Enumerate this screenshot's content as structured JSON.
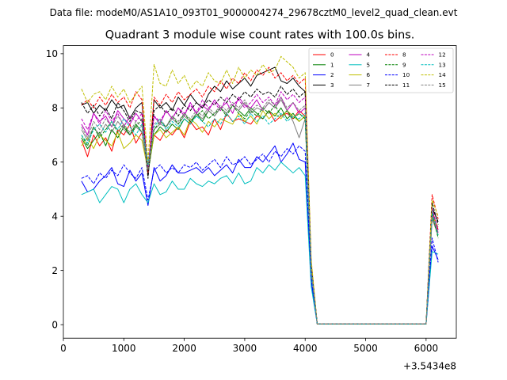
{
  "chart_data": {
    "type": "line",
    "suptitle": "Data file: modeM0/AS1A10_093T01_9000004274_29678cztM0_level2_quad_clean.evt",
    "title": "Quadrant 3 module wise count rates with 100.0s bins.",
    "xlabel": "",
    "ylabel": "",
    "x_offset_label": "+3.5434e8",
    "xlim": [
      0,
      6500
    ],
    "ylim": [
      -0.5,
      10.3
    ],
    "xticks": [
      0,
      1000,
      2000,
      3000,
      4000,
      5000,
      6000
    ],
    "xtick_labels": [
      "0",
      "1000",
      "2000",
      "3000",
      "4000",
      "5000",
      "6000"
    ],
    "yticks": [
      0,
      2,
      4,
      6,
      8,
      10
    ],
    "ytick_labels": [
      "0",
      "2",
      "4",
      "6",
      "8",
      "10"
    ],
    "x": [
      300,
      400,
      500,
      600,
      700,
      800,
      900,
      1000,
      1100,
      1200,
      1300,
      1400,
      1500,
      1600,
      1700,
      1800,
      1900,
      2000,
      2100,
      2200,
      2300,
      2400,
      2500,
      2600,
      2700,
      2800,
      2900,
      3000,
      3100,
      3200,
      3300,
      3400,
      3500,
      3600,
      3700,
      3800,
      3900,
      4000,
      4100,
      4200,
      4300,
      4400,
      4500,
      4600,
      4700,
      4800,
      4900,
      5000,
      5100,
      5200,
      5300,
      5400,
      5500,
      5600,
      5700,
      5800,
      5900,
      6000,
      6100,
      6200
    ],
    "series": [
      {
        "name": "0",
        "color": "#ff0000",
        "style": "solid",
        "values": [
          6.8,
          6.2,
          7.0,
          6.6,
          6.9,
          6.4,
          7.2,
          7.0,
          7.4,
          6.7,
          7.1,
          5.8,
          7.0,
          6.8,
          7.2,
          7.0,
          7.3,
          6.9,
          7.5,
          7.2,
          7.3,
          7.0,
          7.6,
          7.2,
          7.8,
          7.5,
          7.6,
          7.5,
          7.4,
          7.7,
          7.6,
          7.9,
          7.5,
          7.7,
          7.8,
          7.6,
          7.9,
          7.7,
          2.0,
          0.02,
          0.02,
          0.02,
          0.02,
          0.02,
          0.02,
          0.02,
          0.02,
          0.02,
          0.02,
          0.02,
          0.02,
          0.02,
          0.02,
          0.02,
          0.02,
          0.02,
          0.02,
          0.02,
          4.2,
          3.5
        ]
      },
      {
        "name": "1",
        "color": "#008000",
        "style": "solid",
        "values": [
          6.9,
          6.5,
          6.8,
          7.1,
          6.6,
          7.2,
          6.9,
          7.3,
          7.0,
          7.4,
          7.1,
          5.6,
          7.0,
          7.3,
          7.1,
          7.4,
          7.2,
          7.6,
          7.4,
          7.8,
          7.5,
          7.9,
          7.7,
          8.0,
          7.8,
          8.1,
          7.9,
          7.7,
          8.0,
          7.8,
          7.6,
          7.9,
          7.7,
          8.0,
          7.6,
          7.8,
          7.5,
          7.7,
          2.0,
          0.02,
          0.02,
          0.02,
          0.02,
          0.02,
          0.02,
          0.02,
          0.02,
          0.02,
          0.02,
          0.02,
          0.02,
          0.02,
          0.02,
          0.02,
          0.02,
          0.02,
          0.02,
          0.02,
          4.0,
          3.3
        ]
      },
      {
        "name": "2",
        "color": "#0000ff",
        "style": "solid",
        "values": [
          5.3,
          4.9,
          5.0,
          5.3,
          5.5,
          5.8,
          5.2,
          5.1,
          5.7,
          5.3,
          5.6,
          4.4,
          5.8,
          5.3,
          5.5,
          5.9,
          5.6,
          5.6,
          5.7,
          5.8,
          5.6,
          5.8,
          5.5,
          5.7,
          5.9,
          5.6,
          6.1,
          5.8,
          5.8,
          6.2,
          6.0,
          6.3,
          6.6,
          6.0,
          6.3,
          6.7,
          6.1,
          6.0,
          1.6,
          0.02,
          0.02,
          0.02,
          0.02,
          0.02,
          0.02,
          0.02,
          0.02,
          0.02,
          0.02,
          0.02,
          0.02,
          0.02,
          0.02,
          0.02,
          0.02,
          0.02,
          0.02,
          0.02,
          2.9,
          2.4
        ]
      },
      {
        "name": "3",
        "color": "#000000",
        "style": "solid",
        "values": [
          8.1,
          8.2,
          7.8,
          8.1,
          7.9,
          8.3,
          8.0,
          8.1,
          7.6,
          8.0,
          8.2,
          5.5,
          8.3,
          8.0,
          8.2,
          7.9,
          8.4,
          8.1,
          8.5,
          8.2,
          8.0,
          8.5,
          8.8,
          8.6,
          9.0,
          8.7,
          8.9,
          9.1,
          8.8,
          9.2,
          9.3,
          9.4,
          9.5,
          9.0,
          8.9,
          9.1,
          8.8,
          8.6,
          2.2,
          0.02,
          0.02,
          0.02,
          0.02,
          0.02,
          0.02,
          0.02,
          0.02,
          0.02,
          0.02,
          0.02,
          0.02,
          0.02,
          0.02,
          0.02,
          0.02,
          0.02,
          0.02,
          0.02,
          4.3,
          3.8
        ]
      },
      {
        "name": "4",
        "color": "#bf00bf",
        "style": "solid",
        "values": [
          7.4,
          7.0,
          7.8,
          7.5,
          7.7,
          7.3,
          7.9,
          7.6,
          7.4,
          7.8,
          7.5,
          5.9,
          7.7,
          7.4,
          7.9,
          7.6,
          8.0,
          7.7,
          8.2,
          7.8,
          8.1,
          7.9,
          8.3,
          8.0,
          8.2,
          7.8,
          8.4,
          8.1,
          8.0,
          8.3,
          7.9,
          8.2,
          8.0,
          8.4,
          7.9,
          8.2,
          7.8,
          8.0,
          2.1,
          0.02,
          0.02,
          0.02,
          0.02,
          0.02,
          0.02,
          0.02,
          0.02,
          0.02,
          0.02,
          0.02,
          0.02,
          0.02,
          0.02,
          0.02,
          0.02,
          0.02,
          0.02,
          0.02,
          4.1,
          3.4
        ]
      },
      {
        "name": "5",
        "color": "#00bfbf",
        "style": "solid",
        "values": [
          4.8,
          4.9,
          5.0,
          4.5,
          4.8,
          5.1,
          5.0,
          4.5,
          5.0,
          5.2,
          4.8,
          4.5,
          5.2,
          4.8,
          4.9,
          5.3,
          5.0,
          5.0,
          5.4,
          5.2,
          5.1,
          5.3,
          5.2,
          5.4,
          5.5,
          5.2,
          5.6,
          5.2,
          5.3,
          5.8,
          5.6,
          5.9,
          5.7,
          6.0,
          5.8,
          5.6,
          5.8,
          5.5,
          1.4,
          0.02,
          0.02,
          0.02,
          0.02,
          0.02,
          0.02,
          0.02,
          0.02,
          0.02,
          0.02,
          0.02,
          0.02,
          0.02,
          0.02,
          0.02,
          0.02,
          0.02,
          0.02,
          0.02,
          2.7,
          2.6
        ]
      },
      {
        "name": "6",
        "color": "#bfbf00",
        "style": "solid",
        "values": [
          6.6,
          6.9,
          6.5,
          7.0,
          6.8,
          6.6,
          7.1,
          6.5,
          6.7,
          7.0,
          6.8,
          5.7,
          7.0,
          7.2,
          6.9,
          7.1,
          7.3,
          7.0,
          7.6,
          7.4,
          7.1,
          7.5,
          7.3,
          7.6,
          7.5,
          7.4,
          7.8,
          7.5,
          7.7,
          7.4,
          7.9,
          7.6,
          7.8,
          7.6,
          7.9,
          7.7,
          7.5,
          7.7,
          2.0,
          0.02,
          0.02,
          0.02,
          0.02,
          0.02,
          0.02,
          0.02,
          0.02,
          0.02,
          0.02,
          0.02,
          0.02,
          0.02,
          0.02,
          0.02,
          0.02,
          0.02,
          0.02,
          0.02,
          4.0,
          3.6
        ]
      },
      {
        "name": "7",
        "color": "#808080",
        "style": "solid",
        "values": [
          7.2,
          6.8,
          7.3,
          7.0,
          7.4,
          7.1,
          7.5,
          7.2,
          7.0,
          7.3,
          7.1,
          5.7,
          7.2,
          7.4,
          7.3,
          7.6,
          7.4,
          7.7,
          7.5,
          7.8,
          7.6,
          7.9,
          7.7,
          8.0,
          7.8,
          8.1,
          7.9,
          8.2,
          7.8,
          8.0,
          7.9,
          8.2,
          8.0,
          8.3,
          7.9,
          7.5,
          6.9,
          7.6,
          1.9,
          0.02,
          0.02,
          0.02,
          0.02,
          0.02,
          0.02,
          0.02,
          0.02,
          0.02,
          0.02,
          0.02,
          0.02,
          0.02,
          0.02,
          0.02,
          0.02,
          0.02,
          0.02,
          0.02,
          3.9,
          3.3
        ]
      },
      {
        "name": "8",
        "color": "#ff0000",
        "style": "dashed",
        "values": [
          8.1,
          8.3,
          8.0,
          8.4,
          8.1,
          8.5,
          8.2,
          8.4,
          8.0,
          8.6,
          8.3,
          5.6,
          8.4,
          8.1,
          8.5,
          8.2,
          8.6,
          8.3,
          8.5,
          8.7,
          8.4,
          8.8,
          8.6,
          9.0,
          8.7,
          9.1,
          8.9,
          9.3,
          9.0,
          9.4,
          9.2,
          9.5,
          9.1,
          9.3,
          9.0,
          9.2,
          8.9,
          9.1,
          2.3,
          0.02,
          0.02,
          0.02,
          0.02,
          0.02,
          0.02,
          0.02,
          0.02,
          0.02,
          0.02,
          0.02,
          0.02,
          0.02,
          0.02,
          0.02,
          0.02,
          0.02,
          0.02,
          0.02,
          4.8,
          3.9
        ]
      },
      {
        "name": "9",
        "color": "#008000",
        "style": "dashed",
        "values": [
          7.0,
          6.6,
          7.3,
          6.9,
          7.2,
          7.5,
          7.1,
          7.4,
          7.0,
          7.3,
          7.6,
          5.8,
          7.2,
          7.5,
          7.3,
          7.7,
          7.4,
          7.8,
          7.5,
          7.7,
          7.9,
          7.6,
          7.8,
          8.0,
          7.7,
          8.1,
          7.8,
          7.6,
          7.9,
          7.7,
          8.0,
          7.8,
          8.1,
          7.7,
          7.9,
          7.6,
          7.8,
          7.6,
          2.0,
          0.02,
          0.02,
          0.02,
          0.02,
          0.02,
          0.02,
          0.02,
          0.02,
          0.02,
          0.02,
          0.02,
          0.02,
          0.02,
          0.02,
          0.02,
          0.02,
          0.02,
          0.02,
          0.02,
          4.1,
          3.2
        ]
      },
      {
        "name": "10",
        "color": "#0000ff",
        "style": "dashed",
        "values": [
          5.4,
          5.5,
          5.2,
          5.6,
          5.4,
          5.7,
          5.5,
          5.9,
          5.6,
          5.4,
          5.8,
          4.6,
          5.7,
          5.9,
          5.6,
          5.8,
          5.6,
          5.9,
          5.8,
          6.0,
          5.7,
          5.9,
          6.1,
          5.8,
          6.2,
          5.9,
          6.0,
          6.2,
          5.9,
          6.1,
          6.3,
          6.0,
          6.4,
          6.2,
          6.5,
          6.3,
          6.6,
          6.4,
          1.7,
          0.02,
          0.02,
          0.02,
          0.02,
          0.02,
          0.02,
          0.02,
          0.02,
          0.02,
          0.02,
          0.02,
          0.02,
          0.02,
          0.02,
          0.02,
          0.02,
          0.02,
          0.02,
          0.02,
          3.2,
          2.3
        ]
      },
      {
        "name": "11",
        "color": "#000000",
        "style": "dashed",
        "values": [
          8.2,
          7.8,
          8.1,
          7.7,
          8.0,
          7.6,
          8.2,
          7.9,
          7.5,
          7.9,
          7.8,
          5.4,
          7.9,
          8.1,
          7.8,
          8.0,
          7.7,
          8.1,
          7.9,
          8.2,
          8.0,
          8.3,
          8.1,
          8.4,
          8.2,
          8.5,
          8.3,
          8.6,
          8.4,
          8.7,
          8.5,
          8.6,
          8.4,
          8.8,
          8.5,
          8.7,
          8.4,
          8.6,
          2.2,
          0.02,
          0.02,
          0.02,
          0.02,
          0.02,
          0.02,
          0.02,
          0.02,
          0.02,
          0.02,
          0.02,
          0.02,
          0.02,
          0.02,
          0.02,
          0.02,
          0.02,
          0.02,
          0.02,
          4.5,
          3.7
        ]
      },
      {
        "name": "12",
        "color": "#bf00bf",
        "style": "dashed",
        "values": [
          7.6,
          7.2,
          7.8,
          7.4,
          7.9,
          7.5,
          7.8,
          7.3,
          7.7,
          7.5,
          7.8,
          5.8,
          7.7,
          7.5,
          7.9,
          7.6,
          8.0,
          7.8,
          8.1,
          7.8,
          8.3,
          8.0,
          8.2,
          7.9,
          8.4,
          8.1,
          8.3,
          8.0,
          8.2,
          8.5,
          8.2,
          8.4,
          8.1,
          8.6,
          8.3,
          8.5,
          8.2,
          8.4,
          2.1,
          0.02,
          0.02,
          0.02,
          0.02,
          0.02,
          0.02,
          0.02,
          0.02,
          0.02,
          0.02,
          0.02,
          0.02,
          0.02,
          0.02,
          0.02,
          0.02,
          0.02,
          0.02,
          0.02,
          4.3,
          3.5
        ]
      },
      {
        "name": "13",
        "color": "#00bfbf",
        "style": "dashed",
        "values": [
          7.0,
          6.7,
          7.2,
          7.4,
          7.1,
          7.5,
          7.2,
          7.6,
          7.3,
          7.0,
          7.4,
          5.9,
          7.3,
          7.6,
          7.2,
          7.5,
          7.3,
          7.6,
          7.4,
          7.7,
          7.5,
          7.3,
          7.6,
          7.4,
          7.8,
          7.5,
          7.7,
          7.4,
          7.8,
          7.5,
          7.7,
          7.4,
          7.6,
          7.8,
          7.5,
          7.7,
          7.6,
          7.8,
          2.0,
          0.02,
          0.02,
          0.02,
          0.02,
          0.02,
          0.02,
          0.02,
          0.02,
          0.02,
          0.02,
          0.02,
          0.02,
          0.02,
          0.02,
          0.02,
          0.02,
          0.02,
          0.02,
          0.02,
          4.2,
          3.3
        ]
      },
      {
        "name": "14",
        "color": "#bfbf00",
        "style": "dashed",
        "values": [
          8.7,
          8.2,
          8.5,
          8.6,
          8.3,
          8.8,
          8.4,
          8.7,
          8.2,
          8.5,
          8.8,
          6.0,
          9.6,
          8.9,
          8.8,
          9.4,
          8.9,
          9.2,
          8.7,
          9.0,
          8.8,
          9.3,
          9.0,
          8.9,
          9.4,
          8.9,
          9.5,
          9.1,
          9.4,
          9.2,
          9.6,
          9.3,
          9.4,
          9.9,
          9.7,
          9.5,
          9.1,
          9.3,
          2.4,
          0.02,
          0.02,
          0.02,
          0.02,
          0.02,
          0.02,
          0.02,
          0.02,
          0.02,
          0.02,
          0.02,
          0.02,
          0.02,
          0.02,
          0.02,
          0.02,
          0.02,
          0.02,
          0.02,
          4.6,
          4.0
        ]
      },
      {
        "name": "15",
        "color": "#808080",
        "style": "dashed",
        "values": [
          7.3,
          6.9,
          7.5,
          7.2,
          7.6,
          7.3,
          7.7,
          7.4,
          7.1,
          7.5,
          7.3,
          5.7,
          7.4,
          7.6,
          7.3,
          7.7,
          7.5,
          7.8,
          7.6,
          7.9,
          7.7,
          8.0,
          7.8,
          8.1,
          7.9,
          8.2,
          8.0,
          8.3,
          7.9,
          8.1,
          8.0,
          8.3,
          8.1,
          8.4,
          8.0,
          8.2,
          7.9,
          8.1,
          2.0,
          0.02,
          0.02,
          0.02,
          0.02,
          0.02,
          0.02,
          0.02,
          0.02,
          0.02,
          0.02,
          0.02,
          0.02,
          0.02,
          0.02,
          0.02,
          0.02,
          0.02,
          0.02,
          0.02,
          4.0,
          3.4
        ]
      }
    ],
    "legend_location": "top-right",
    "legend_columns": 4
  }
}
